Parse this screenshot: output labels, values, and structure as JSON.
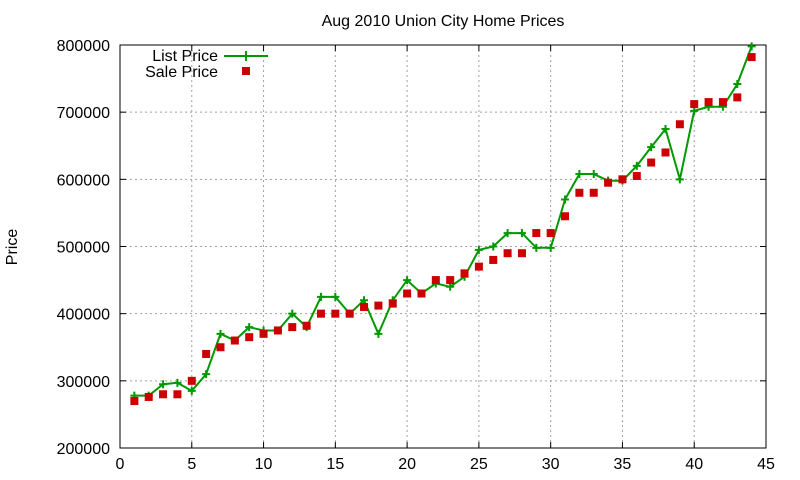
{
  "chart_data": {
    "type": "line",
    "title": "Aug 2010 Union City Home Prices",
    "xlabel": "",
    "ylabel": "Price",
    "xlim": [
      0,
      45
    ],
    "ylim": [
      200000,
      800000
    ],
    "x_ticks": [
      "0",
      "5",
      "10",
      "15",
      "20",
      "25",
      "30",
      "35",
      "40",
      "45"
    ],
    "y_ticks": [
      "200000",
      "300000",
      "400000",
      "500000",
      "600000",
      "700000",
      "800000"
    ],
    "grid": true,
    "legend_position": "top-left",
    "x": [
      1,
      2,
      3,
      4,
      5,
      6,
      7,
      8,
      9,
      10,
      11,
      12,
      13,
      14,
      15,
      16,
      17,
      18,
      19,
      20,
      21,
      22,
      23,
      24,
      25,
      26,
      27,
      28,
      29,
      30,
      31,
      32,
      33,
      34,
      35,
      36,
      37,
      38,
      39,
      40,
      41,
      42,
      43,
      44
    ],
    "series": [
      {
        "name": "List Price",
        "kind": "line-with-plus-markers",
        "color": "#009900",
        "values": [
          278000,
          278000,
          295000,
          297000,
          285000,
          310000,
          370000,
          360000,
          380000,
          375000,
          375000,
          400000,
          380000,
          425000,
          425000,
          400000,
          420000,
          370000,
          420000,
          450000,
          430000,
          445000,
          440000,
          455000,
          495000,
          500000,
          520000,
          520000,
          498000,
          498000,
          570000,
          608000,
          608000,
          598000,
          598000,
          620000,
          648000,
          675000,
          600000,
          702000,
          708000,
          708000,
          742000,
          798000
        ]
      },
      {
        "name": "Sale Price",
        "kind": "square-markers",
        "color": "#cc0000",
        "values": [
          270000,
          276000,
          280000,
          280000,
          300000,
          340000,
          350000,
          360000,
          365000,
          370000,
          375000,
          380000,
          382000,
          400000,
          400000,
          400000,
          410000,
          412000,
          415000,
          430000,
          430000,
          450000,
          450000,
          460000,
          470000,
          480000,
          490000,
          490000,
          520000,
          520000,
          545000,
          580000,
          580000,
          595000,
          600000,
          605000,
          625000,
          640000,
          682000,
          712000,
          715000,
          715000,
          722000,
          782000
        ]
      }
    ]
  }
}
